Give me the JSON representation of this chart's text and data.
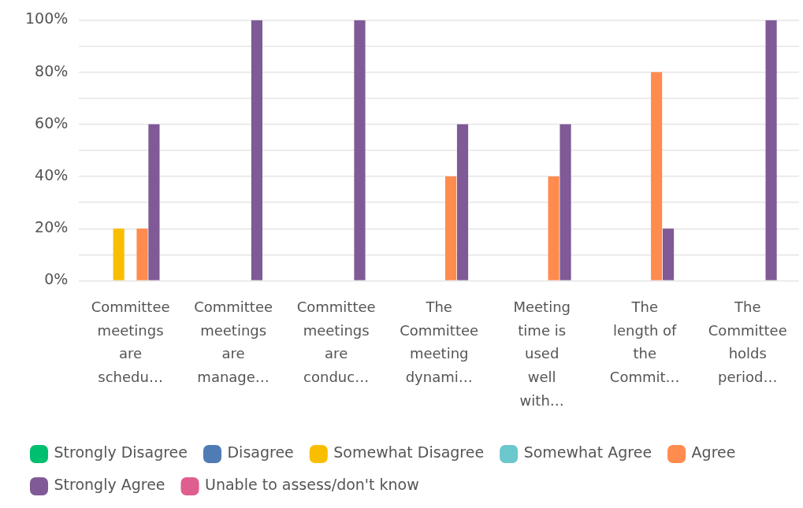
{
  "chart_data": {
    "type": "bar",
    "categories": [
      "Committee\nmeetings\nare\nschedu…",
      "Committee\nmeetings\nare\nmanage…",
      "Committee\nmeetings\nare\nconduc…",
      "The\nCommittee\nmeeting\ndynami…",
      "Meeting\ntime is\nused\nwell\nwith…",
      "The\nlength of\nthe\nCommit…",
      "The\nCommittee\nholds\nperiod…"
    ],
    "series": [
      {
        "name": "Strongly Disagree",
        "color": "#00bf6f",
        "values": [
          0,
          0,
          0,
          0,
          0,
          0,
          0
        ]
      },
      {
        "name": "Disagree",
        "color": "#507cb6",
        "values": [
          0,
          0,
          0,
          0,
          0,
          0,
          0
        ]
      },
      {
        "name": "Somewhat Disagree",
        "color": "#f9be00",
        "values": [
          20,
          0,
          0,
          0,
          0,
          0,
          0
        ]
      },
      {
        "name": "Somewhat Agree",
        "color": "#6bc8cd",
        "values": [
          0,
          0,
          0,
          0,
          0,
          0,
          0
        ]
      },
      {
        "name": "Agree",
        "color": "#ff8b4f",
        "values": [
          20,
          0,
          0,
          40,
          40,
          80,
          0
        ]
      },
      {
        "name": "Strongly Agree",
        "color": "#7f5a96",
        "values": [
          60,
          100,
          100,
          60,
          60,
          20,
          100
        ]
      },
      {
        "name": "Unable to assess/don't know",
        "color": "#de5f8f",
        "values": [
          0,
          0,
          0,
          0,
          0,
          0,
          0
        ]
      }
    ],
    "ylim": [
      0,
      100
    ],
    "yticks": [
      {
        "value": 0,
        "label": "0%"
      },
      {
        "value": 10,
        "label": null
      },
      {
        "value": 20,
        "label": "20%"
      },
      {
        "value": 30,
        "label": null
      },
      {
        "value": 40,
        "label": "40%"
      },
      {
        "value": 50,
        "label": null
      },
      {
        "value": 60,
        "label": "60%"
      },
      {
        "value": 70,
        "label": null
      },
      {
        "value": 80,
        "label": "80%"
      },
      {
        "value": 90,
        "label": null
      },
      {
        "value": 100,
        "label": "100%"
      }
    ],
    "grid": true,
    "legend": "bottom"
  }
}
